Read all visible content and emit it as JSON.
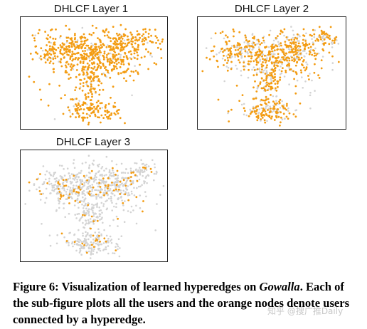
{
  "figure": {
    "panels": [
      {
        "title": "DHLCF Layer 1",
        "orange_fraction": 0.9
      },
      {
        "title": "DHLCF Layer 2",
        "orange_fraction": 0.65
      },
      {
        "title": "DHLCF Layer 3",
        "orange_fraction": 0.12
      }
    ],
    "colors": {
      "highlight": "#f39c12",
      "background_nodes": "#d3d3d3",
      "frame": "#222222"
    }
  },
  "caption": {
    "label": "Figure 6:",
    "text_before": "Visualization of learned hyperedges on",
    "dataset": "Gowalla",
    "text_after": ". Each of the sub-figure plots all the users and the orange nodes denote users connected by a hyperedge."
  },
  "watermark": "知乎 @搜广推Daily"
}
